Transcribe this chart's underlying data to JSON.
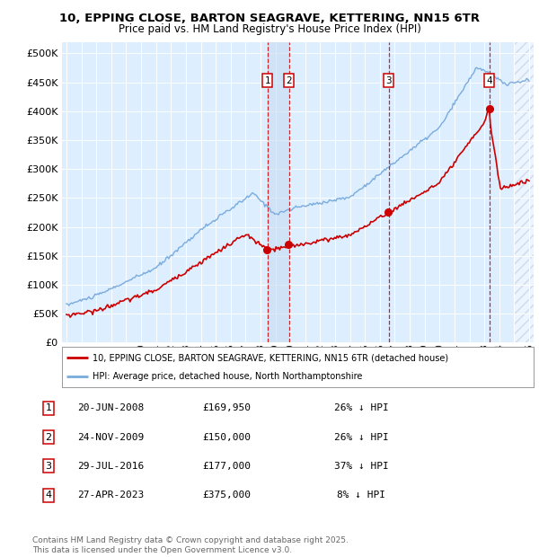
{
  "title": "10, EPPING CLOSE, BARTON SEAGRAVE, KETTERING, NN15 6TR",
  "subtitle": "Price paid vs. HM Land Registry's House Price Index (HPI)",
  "background_color": "#ffffff",
  "plot_bg_color": "#ddeeff",
  "ylim": [
    0,
    520000
  ],
  "yticks": [
    0,
    50000,
    100000,
    150000,
    200000,
    250000,
    300000,
    350000,
    400000,
    450000,
    500000
  ],
  "xlim_start": 1994.7,
  "xlim_end": 2026.3,
  "sale_markers": [
    {
      "num": 1,
      "price": 169950,
      "x": 2008.47
    },
    {
      "num": 2,
      "price": 150000,
      "x": 2009.9
    },
    {
      "num": 3,
      "price": 177000,
      "x": 2016.58
    },
    {
      "num": 4,
      "price": 375000,
      "x": 2023.33
    }
  ],
  "table_rows": [
    {
      "num": 1,
      "date": "20-JUN-2008",
      "price": "£169,950",
      "pct": "26% ↓ HPI"
    },
    {
      "num": 2,
      "date": "24-NOV-2009",
      "price": "£150,000",
      "pct": "26% ↓ HPI"
    },
    {
      "num": 3,
      "date": "29-JUL-2016",
      "price": "£177,000",
      "pct": "37% ↓ HPI"
    },
    {
      "num": 4,
      "date": "27-APR-2023",
      "price": "£375,000",
      "pct": "8% ↓ HPI"
    }
  ],
  "footer": "Contains HM Land Registry data © Crown copyright and database right 2025.\nThis data is licensed under the Open Government Licence v3.0.",
  "legend_house": "10, EPPING CLOSE, BARTON SEAGRAVE, KETTERING, NN15 6TR (detached house)",
  "legend_hpi": "HPI: Average price, detached house, North Northamptonshire",
  "house_color": "#cc0000",
  "hpi_color": "#7aabdd"
}
